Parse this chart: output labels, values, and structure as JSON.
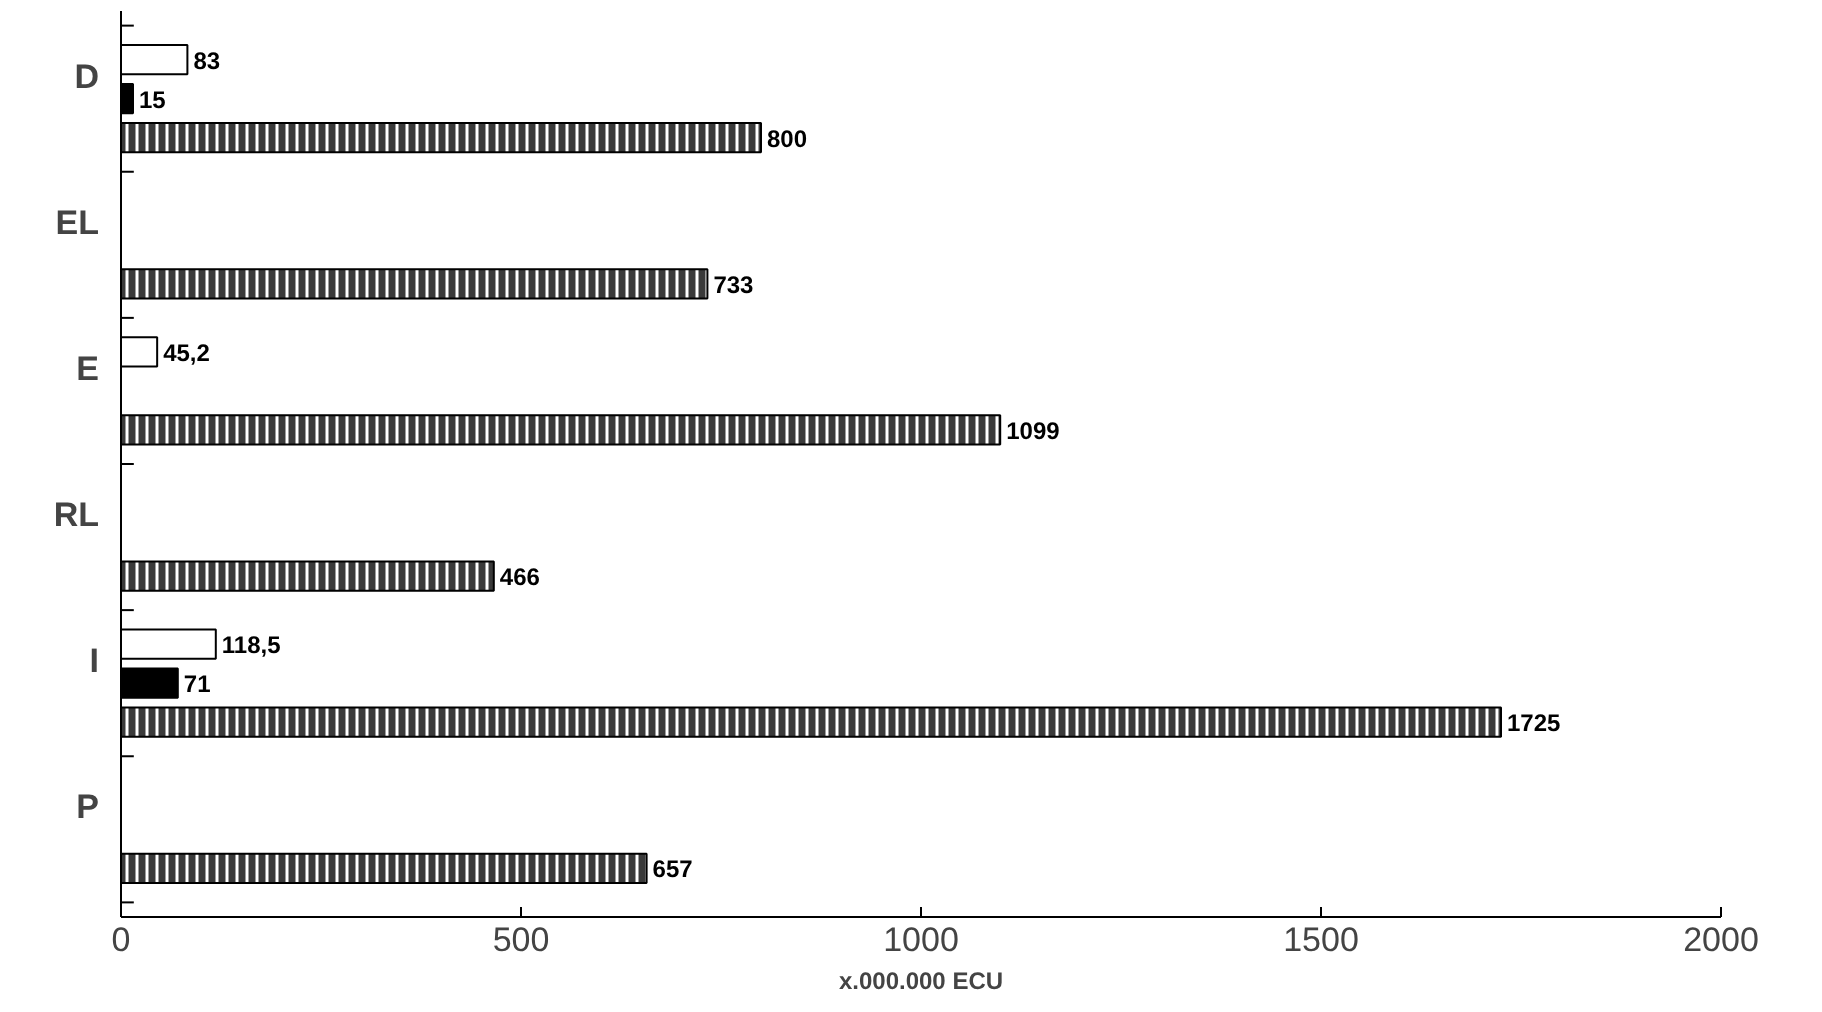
{
  "chart_data": {
    "type": "bar",
    "orientation": "horizontal",
    "xlabel": "x.000.000 ECU",
    "categories": [
      "D",
      "EL",
      "E",
      "RL",
      "I",
      "P"
    ],
    "series": [
      {
        "color": "#ffffff",
        "values": [
          83,
          null,
          45.2,
          null,
          118.5,
          null
        ],
        "value_labels": [
          "83",
          null,
          "45,2",
          null,
          "118,5",
          null
        ]
      },
      {
        "color": "#000000",
        "values": [
          15,
          null,
          null,
          null,
          71,
          null
        ],
        "value_labels": [
          "15",
          null,
          null,
          null,
          "71",
          null
        ]
      },
      {
        "color": "#3a3a3a",
        "values": [
          800,
          733,
          1099,
          466,
          1725,
          657
        ],
        "value_labels": [
          "800",
          "733",
          "1099",
          "466",
          "1725",
          "657"
        ]
      }
    ],
    "xlim": [
      0,
      2000
    ],
    "xticks": [
      0,
      500,
      1000,
      1500,
      2000
    ],
    "grid": false
  }
}
